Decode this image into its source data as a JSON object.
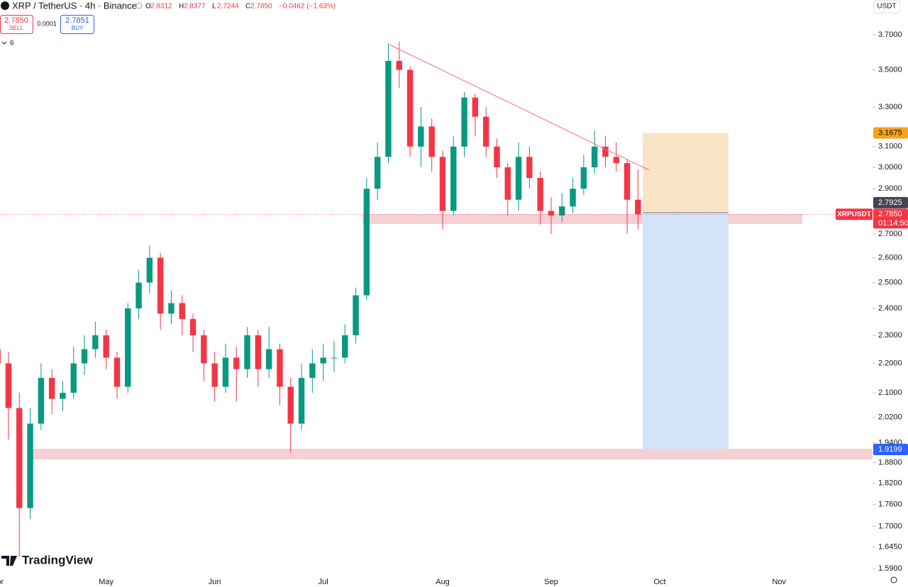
{
  "header": {
    "symbol": "XRP / TetherUS · 4h · Binance",
    "legend": [
      {
        "label": "O",
        "value": "2.8312"
      },
      {
        "label": "H",
        "value": "2.8377"
      },
      {
        "label": "L",
        "value": "2.7244"
      },
      {
        "label": "C",
        "value": "2.7850"
      }
    ],
    "change": "−0.0462 (−1.63%)",
    "sell": {
      "price": "2.7850",
      "label": "SELL"
    },
    "spread": "0.0001",
    "buy": {
      "price": "2.7851",
      "label": "BUY"
    },
    "indicators_count": "6",
    "currency": "USDT",
    "brand": "TradingView"
  },
  "chart_data": {
    "type": "candlestick",
    "log_scale": true,
    "grid": false,
    "up_color": "#089981",
    "down_color": "#f23645",
    "categories": [
      "Apr",
      null,
      null,
      null,
      null,
      null,
      null,
      null,
      null,
      null,
      "May",
      null,
      null,
      null,
      null,
      null,
      null,
      null,
      null,
      null,
      "Jun",
      null,
      null,
      null,
      null,
      null,
      null,
      null,
      null,
      null,
      "Jul",
      null,
      null,
      null,
      null,
      null,
      null,
      null,
      null,
      null,
      null,
      "Aug",
      null,
      null,
      null,
      null,
      null,
      null,
      null,
      null,
      null,
      "Sep",
      null,
      null,
      null,
      null,
      null,
      null,
      null,
      null,
      null,
      "Oct",
      null,
      null,
      null,
      null,
      null,
      null,
      null,
      null,
      null,
      null,
      "Nov",
      null,
      null,
      null,
      null,
      null,
      null,
      null
    ],
    "open": [
      2.25,
      2.2,
      2.05,
      1.75,
      2.0,
      2.15,
      2.08,
      2.1,
      2.2,
      2.25,
      2.3,
      2.22,
      2.12,
      2.4,
      2.5,
      2.6,
      2.38,
      2.42,
      2.36,
      2.3,
      2.2,
      2.12,
      2.22,
      2.18,
      2.3,
      2.18,
      2.25,
      2.12,
      2.0,
      2.15,
      2.2,
      2.22,
      2.22,
      2.3,
      2.45,
      2.9,
      3.05,
      3.55,
      3.5,
      3.1,
      3.2,
      3.05,
      2.8,
      3.1,
      3.35,
      3.25,
      3.1,
      3.0,
      2.85,
      3.05,
      2.95,
      2.8,
      2.78,
      2.82,
      2.9,
      3.0,
      3.1,
      3.05,
      3.02,
      2.85,
      null,
      null,
      null,
      null,
      null,
      null,
      null,
      null,
      null,
      null,
      null,
      null,
      null,
      null,
      null,
      null,
      null,
      null,
      null,
      null
    ],
    "high": [
      2.35,
      2.24,
      2.1,
      2.05,
      2.2,
      2.18,
      2.14,
      2.26,
      2.3,
      2.35,
      2.32,
      2.24,
      2.42,
      2.55,
      2.65,
      2.62,
      2.47,
      2.45,
      2.38,
      2.32,
      2.24,
      2.27,
      2.26,
      2.33,
      2.32,
      2.33,
      2.27,
      2.15,
      2.2,
      2.25,
      2.27,
      2.28,
      2.34,
      2.48,
      2.95,
      3.12,
      3.65,
      3.66,
      3.52,
      3.3,
      3.24,
      3.08,
      3.15,
      3.38,
      3.37,
      3.3,
      3.14,
      3.02,
      3.12,
      3.1,
      2.98,
      2.86,
      2.88,
      2.95,
      3.06,
      3.18,
      3.15,
      3.12,
      3.04,
      2.99,
      null,
      null,
      null,
      null,
      null,
      null,
      null,
      null,
      null,
      null,
      null,
      null,
      null,
      null,
      null,
      null,
      null,
      null,
      null,
      null
    ],
    "low": [
      2.15,
      1.95,
      1.62,
      1.72,
      1.98,
      2.03,
      2.04,
      2.08,
      2.16,
      2.22,
      2.18,
      2.08,
      2.1,
      2.36,
      2.46,
      2.32,
      2.34,
      2.3,
      2.24,
      2.14,
      2.07,
      2.1,
      2.07,
      2.15,
      2.12,
      2.15,
      2.06,
      1.91,
      1.98,
      2.1,
      2.14,
      2.17,
      2.2,
      2.27,
      2.43,
      2.85,
      3.02,
      3.4,
      3.05,
      3.0,
      2.98,
      2.72,
      2.78,
      3.05,
      3.15,
      3.05,
      2.95,
      2.78,
      2.8,
      2.9,
      2.74,
      2.7,
      2.75,
      2.79,
      2.87,
      2.97,
      3.0,
      2.98,
      2.7,
      2.72,
      null,
      null,
      null,
      null,
      null,
      null,
      null,
      null,
      null,
      null,
      null,
      null,
      null,
      null,
      null,
      null,
      null,
      null,
      null,
      null
    ],
    "close": [
      2.2,
      2.05,
      1.75,
      2.0,
      2.15,
      2.08,
      2.1,
      2.2,
      2.25,
      2.3,
      2.22,
      2.12,
      2.4,
      2.5,
      2.6,
      2.38,
      2.42,
      2.36,
      2.3,
      2.2,
      2.12,
      2.22,
      2.18,
      2.3,
      2.18,
      2.25,
      2.12,
      2.0,
      2.15,
      2.2,
      2.22,
      2.22,
      2.3,
      2.45,
      2.9,
      3.05,
      3.55,
      3.5,
      3.1,
      3.2,
      3.05,
      2.8,
      3.1,
      3.35,
      3.25,
      3.1,
      3.0,
      2.85,
      3.05,
      2.95,
      2.8,
      2.78,
      2.82,
      2.9,
      3.0,
      3.1,
      3.05,
      3.02,
      2.85,
      2.785,
      null,
      null,
      null,
      null,
      null,
      null,
      null,
      null,
      null,
      null,
      null,
      null,
      null,
      null,
      null,
      null,
      null,
      null,
      null,
      null
    ],
    "ylim": [
      1.576,
      3.909
    ],
    "yticks": [
      {
        "value": 3.7,
        "label": "3.7000"
      },
      {
        "value": 3.5,
        "label": "3.5000"
      },
      {
        "value": 3.3,
        "label": "3.3000"
      },
      {
        "value": 3.1,
        "label": "3.1000"
      },
      {
        "value": 3.0,
        "label": "3.0000"
      },
      {
        "value": 2.9,
        "label": "2.9000"
      },
      {
        "value": 2.7,
        "label": "2.7000"
      },
      {
        "value": 2.6,
        "label": "2.6000"
      },
      {
        "value": 2.5,
        "label": "2.5000"
      },
      {
        "value": 2.4,
        "label": "2.4000"
      },
      {
        "value": 2.3,
        "label": "2.3000"
      },
      {
        "value": 2.2,
        "label": "2.2000"
      },
      {
        "value": 2.1,
        "label": "2.1000"
      },
      {
        "value": 2.02,
        "label": "2.0200"
      },
      {
        "value": 1.94,
        "label": "1.9400"
      },
      {
        "value": 1.88,
        "label": "1.8800"
      },
      {
        "value": 1.82,
        "label": "1.8200"
      },
      {
        "value": 1.76,
        "label": "1.7600"
      },
      {
        "value": 1.7,
        "label": "1.7000"
      },
      {
        "value": 1.645,
        "label": "1.6450"
      },
      {
        "value": 1.59,
        "label": "1.5900"
      }
    ],
    "last_price": {
      "value": 2.785,
      "label": "2.7850",
      "tag": "XRPUSDT",
      "countdown": "01:14:50"
    },
    "position": {
      "target": {
        "value": 3.1675,
        "label": "3.1675"
      },
      "entry": {
        "value": 2.7925,
        "label": "2.7925"
      },
      "stop": {
        "value": 1.9199,
        "label": "1.9199"
      }
    }
  }
}
